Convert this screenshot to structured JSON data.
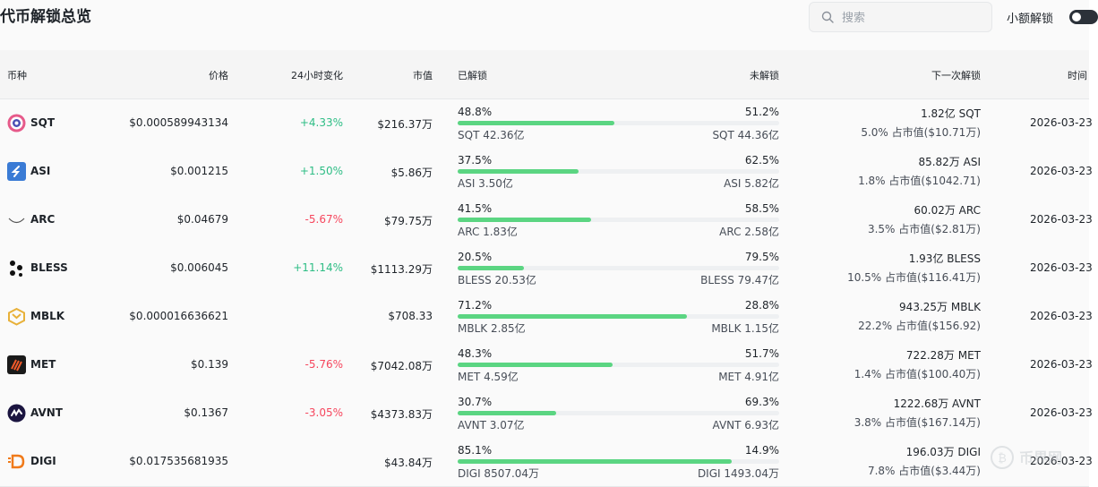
{
  "page": {
    "title": "代币解锁总览"
  },
  "search": {
    "placeholder": "搜索",
    "value": ""
  },
  "toggle": {
    "label": "小额解锁",
    "on": true
  },
  "columns": {
    "coin": "币种",
    "price": "价格",
    "change24h": "24小时变化",
    "mcap": "市值",
    "unlocked": "已解锁",
    "locked": "未解锁",
    "next": "下一次解锁",
    "time": "时间"
  },
  "colors": {
    "positive": "#2ebd85",
    "negative": "#f6465d",
    "bar": "#5bd582"
  },
  "rows": [
    {
      "symbol": "SQT",
      "icon": "sqt-logo-icon",
      "price": "$0.000589943134",
      "change": "+4.33%",
      "change_dir": "pos",
      "mcap": "$216.37万",
      "unlocked_pct": "48.8%",
      "unlocked_amt": "SQT 42.36亿",
      "locked_pct": "51.2%",
      "locked_amt": "SQT 44.36亿",
      "progress": 0.488,
      "next_amount": "1.82亿 SQT",
      "next_share": "5.0% 占市值($10.71万)",
      "time": "2026-03-23"
    },
    {
      "symbol": "ASI",
      "icon": "asi-logo-icon",
      "price": "$0.001215",
      "change": "+1.50%",
      "change_dir": "pos",
      "mcap": "$5.86万",
      "unlocked_pct": "37.5%",
      "unlocked_amt": "ASI 3.50亿",
      "locked_pct": "62.5%",
      "locked_amt": "ASI 5.82亿",
      "progress": 0.375,
      "next_amount": "85.82万 ASI",
      "next_share": "1.8% 占市值($1042.71)",
      "time": "2026-03-23"
    },
    {
      "symbol": "ARC",
      "icon": "arc-logo-icon",
      "price": "$0.04679",
      "change": "-5.67%",
      "change_dir": "neg",
      "mcap": "$79.75万",
      "unlocked_pct": "41.5%",
      "unlocked_amt": "ARC 1.83亿",
      "locked_pct": "58.5%",
      "locked_amt": "ARC 2.58亿",
      "progress": 0.415,
      "next_amount": "60.02万 ARC",
      "next_share": "3.5% 占市值($2.81万)",
      "time": "2026-03-23"
    },
    {
      "symbol": "BLESS",
      "icon": "bless-logo-icon",
      "price": "$0.006045",
      "change": "+11.14%",
      "change_dir": "pos",
      "mcap": "$1113.29万",
      "unlocked_pct": "20.5%",
      "unlocked_amt": "BLESS 20.53亿",
      "locked_pct": "79.5%",
      "locked_amt": "BLESS 79.47亿",
      "progress": 0.205,
      "next_amount": "1.93亿 BLESS",
      "next_share": "10.5% 占市值($116.41万)",
      "time": "2026-03-23"
    },
    {
      "symbol": "MBLK",
      "icon": "mblk-logo-icon",
      "price": "$0.000016636621",
      "change": "",
      "change_dir": "pos",
      "mcap": "$708.33",
      "unlocked_pct": "71.2%",
      "unlocked_amt": "MBLK 2.85亿",
      "locked_pct": "28.8%",
      "locked_amt": "MBLK 1.15亿",
      "progress": 0.712,
      "next_amount": "943.25万 MBLK",
      "next_share": "22.2% 占市值($156.92)",
      "time": "2026-03-23"
    },
    {
      "symbol": "MET",
      "icon": "met-logo-icon",
      "price": "$0.139",
      "change": "-5.76%",
      "change_dir": "neg",
      "mcap": "$7042.08万",
      "unlocked_pct": "48.3%",
      "unlocked_amt": "MET 4.59亿",
      "locked_pct": "51.7%",
      "locked_amt": "MET 4.91亿",
      "progress": 0.483,
      "next_amount": "722.28万 MET",
      "next_share": "1.4% 占市值($100.40万)",
      "time": "2026-03-23"
    },
    {
      "symbol": "AVNT",
      "icon": "avnt-logo-icon",
      "price": "$0.1367",
      "change": "-3.05%",
      "change_dir": "neg",
      "mcap": "$4373.83万",
      "unlocked_pct": "30.7%",
      "unlocked_amt": "AVNT 3.07亿",
      "locked_pct": "69.3%",
      "locked_amt": "AVNT 6.93亿",
      "progress": 0.307,
      "next_amount": "1222.68万 AVNT",
      "next_share": "3.8% 占市值($167.14万)",
      "time": "2026-03-23"
    },
    {
      "symbol": "DIGI",
      "icon": "digi-logo-icon",
      "price": "$0.017535681935",
      "change": "",
      "change_dir": "pos",
      "mcap": "$43.84万",
      "unlocked_pct": "85.1%",
      "unlocked_amt": "DIGI 8507.04万",
      "locked_pct": "14.9%",
      "locked_amt": "DIGI 1493.04万",
      "progress": 0.851,
      "next_amount": "196.03万 DIGI",
      "next_share": "7.8% 占市值($3.44万)",
      "time": "2026-03-23"
    }
  ],
  "watermark": {
    "icon": "brand-watermark-icon",
    "text": "币界网"
  }
}
